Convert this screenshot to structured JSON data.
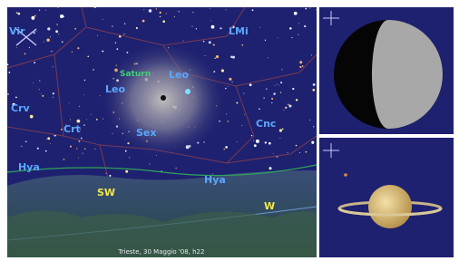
{
  "sky_labels": [
    "Vir",
    "LMi",
    "Saturn",
    "Leo",
    "Leo",
    "Crv",
    "Crt",
    "Sex",
    "Cnc",
    "Hya",
    "Hya"
  ],
  "horizon_labels": [
    "SW",
    "W"
  ],
  "caption": "Trieste, 30 Maggio '08, h22"
}
